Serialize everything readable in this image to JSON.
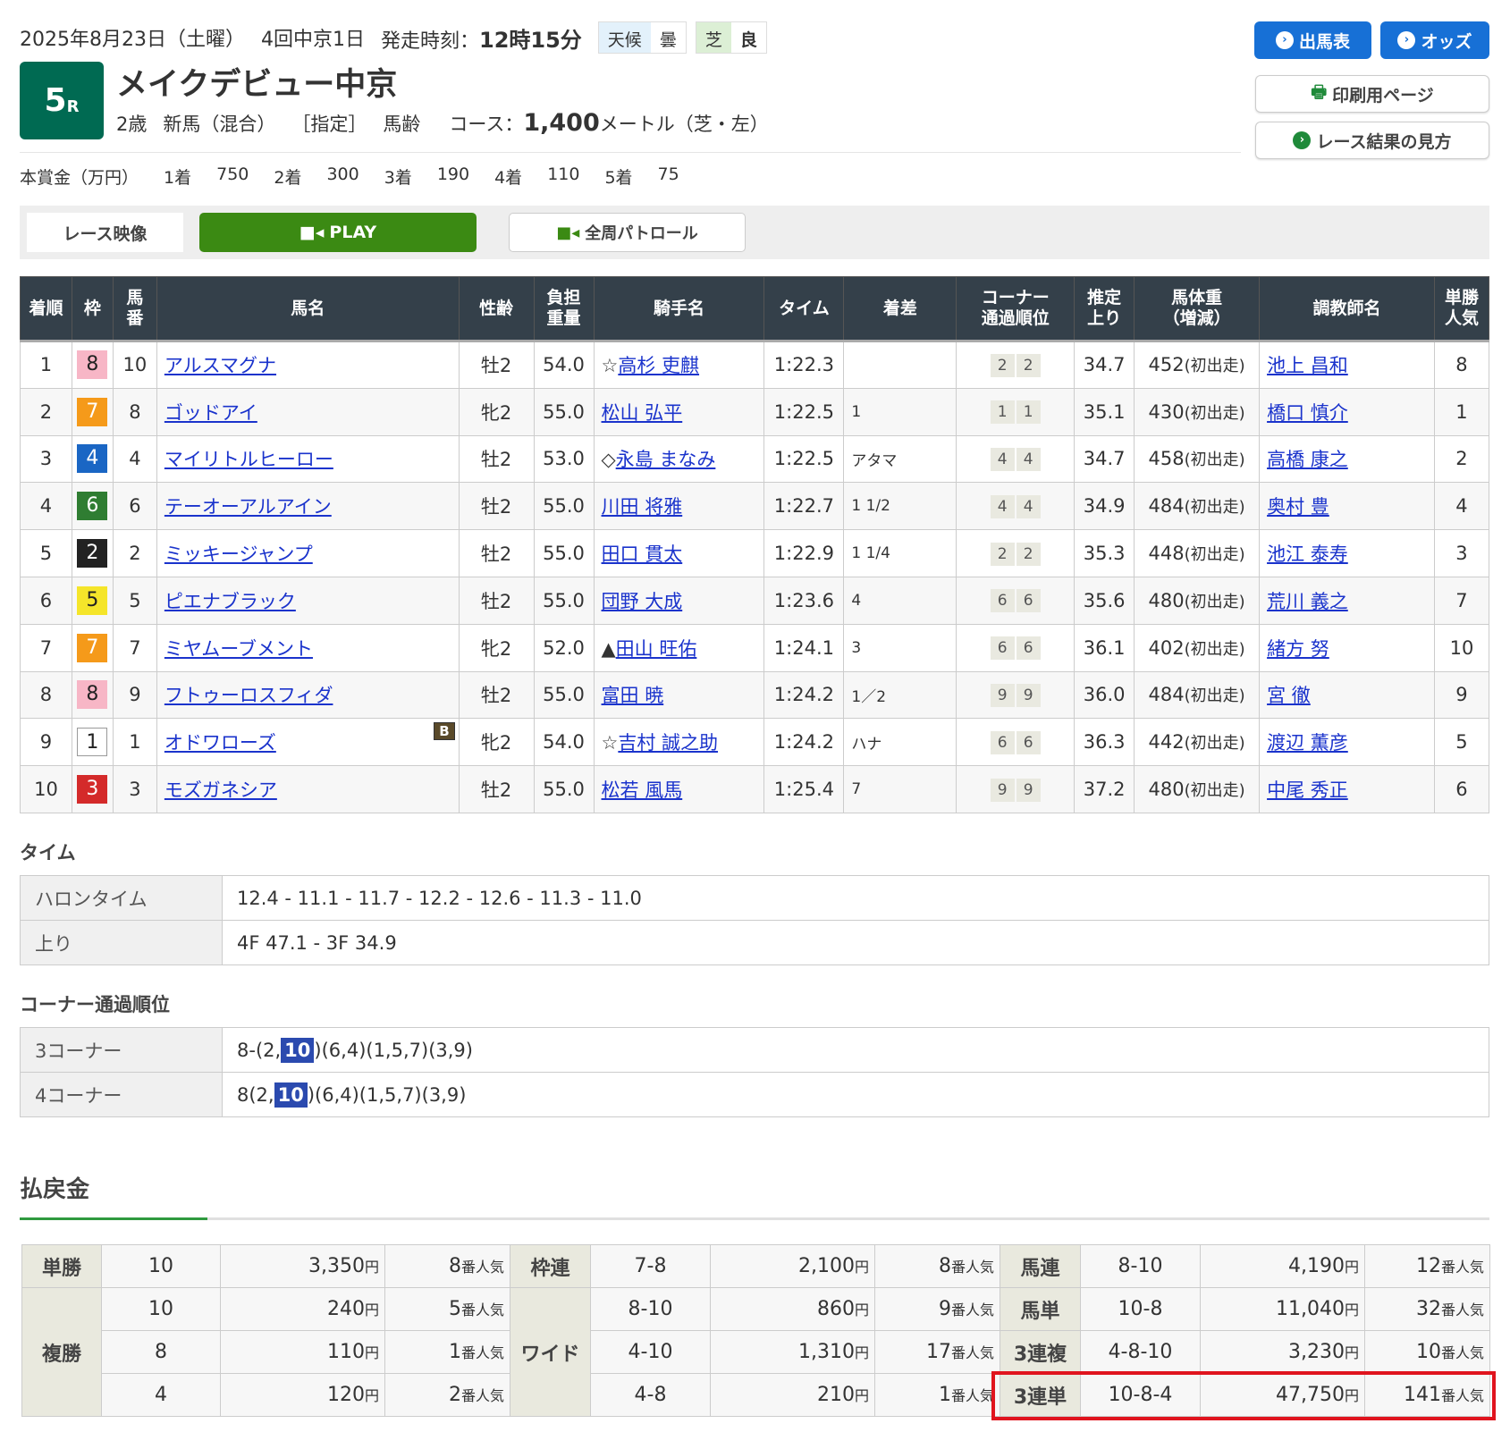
{
  "header": {
    "date": "2025年8月23日（土曜）",
    "meeting": "4回中京1日",
    "post_time_label": "発走時刻：",
    "post_time": "12時15分",
    "weather_label": "天候",
    "weather": "曇",
    "turf_label": "芝",
    "track": "良",
    "race_no": "5",
    "race_suffix": "R",
    "title": "メイクデビュー中京",
    "age": "2歳",
    "class": "新馬（混合）",
    "designation": "［指定］",
    "weight_rule": "馬齢",
    "course_label": "コース：",
    "distance": "1,400",
    "course_unit": "メートル（芝・左）"
  },
  "prize": {
    "label": "本賞金（万円）",
    "items": [
      [
        "1着",
        "750"
      ],
      [
        "2着",
        "300"
      ],
      [
        "3着",
        "190"
      ],
      [
        "4着",
        "110"
      ],
      [
        "5着",
        "75"
      ]
    ]
  },
  "buttons": {
    "entries": "出馬表",
    "odds": "オッズ",
    "print": "印刷用ページ",
    "guide": "レース結果の見方"
  },
  "video": {
    "label": "レース映像",
    "play": "PLAY",
    "patrol": "全周パトロール"
  },
  "colors": {
    "accent": "#1770d6",
    "race_badge": "#006a52",
    "play": "#3b8a13",
    "highlight": "#2b4aaf",
    "frames": {
      "1": "#ffffff",
      "2": "#222222",
      "3": "#d42a2a",
      "4": "#1a66c4",
      "5": "#f5e52a",
      "6": "#2f7d32",
      "7": "#f59a1a",
      "8": "#f7b6c6"
    }
  },
  "results": {
    "headers": [
      "着順",
      "枠",
      "馬番",
      "馬名",
      "性齢",
      "負担重量",
      "騎手名",
      "タイム",
      "着差",
      "コーナー通過順位",
      "推定上り",
      "馬体重（増減）",
      "調教師名",
      "単勝人気"
    ],
    "rows": [
      [
        "1",
        "8",
        "10",
        "アルスマグナ",
        "",
        "牡2",
        "54.0",
        "☆",
        "高杉 吏麒",
        "1:22.3",
        "",
        "2",
        "2",
        "34.7",
        "452",
        "(初出走)",
        "池上 昌和",
        "8"
      ],
      [
        "2",
        "7",
        "8",
        "ゴッドアイ",
        "",
        "牝2",
        "55.0",
        "",
        "松山 弘平",
        "1:22.5",
        "1",
        "1",
        "1",
        "35.1",
        "430",
        "(初出走)",
        "橋口 慎介",
        "1"
      ],
      [
        "3",
        "4",
        "4",
        "マイリトルヒーロー",
        "",
        "牡2",
        "53.0",
        "◇",
        "永島 まなみ",
        "1:22.5",
        "アタマ",
        "4",
        "4",
        "34.7",
        "458",
        "(初出走)",
        "高橋 康之",
        "2"
      ],
      [
        "4",
        "6",
        "6",
        "テーオーアルアイン",
        "",
        "牡2",
        "55.0",
        "",
        "川田 将雅",
        "1:22.7",
        "1 1/2",
        "4",
        "4",
        "34.9",
        "484",
        "(初出走)",
        "奥村 豊",
        "4"
      ],
      [
        "5",
        "2",
        "2",
        "ミッキージャンプ",
        "",
        "牡2",
        "55.0",
        "",
        "田口 貫太",
        "1:22.9",
        "1 1/4",
        "2",
        "2",
        "35.3",
        "448",
        "(初出走)",
        "池江 泰寿",
        "3"
      ],
      [
        "6",
        "5",
        "5",
        "ピエナブラック",
        "",
        "牡2",
        "55.0",
        "",
        "団野 大成",
        "1:23.6",
        "4",
        "6",
        "6",
        "35.6",
        "480",
        "(初出走)",
        "荒川 義之",
        "7"
      ],
      [
        "7",
        "7",
        "7",
        "ミヤムーブメント",
        "",
        "牝2",
        "52.0",
        "▲",
        "田山 旺佑",
        "1:24.1",
        "3",
        "6",
        "6",
        "36.1",
        "402",
        "(初出走)",
        "緒方 努",
        "10"
      ],
      [
        "8",
        "8",
        "9",
        "フトゥーロスフィダ",
        "",
        "牡2",
        "55.0",
        "",
        "富田 暁",
        "1:24.2",
        "1／2",
        "9",
        "9",
        "36.0",
        "484",
        "(初出走)",
        "宮 徹",
        "9"
      ],
      [
        "9",
        "1",
        "1",
        "オドワローズ",
        "B",
        "牝2",
        "54.0",
        "☆",
        "吉村 誠之助",
        "1:24.2",
        "ハナ",
        "6",
        "6",
        "36.3",
        "442",
        "(初出走)",
        "渡辺 薫彦",
        "5"
      ],
      [
        "10",
        "3",
        "3",
        "モズガネシア",
        "",
        "牡2",
        "55.0",
        "",
        "松若 風馬",
        "1:25.4",
        "7",
        "9",
        "9",
        "37.2",
        "480",
        "(初出走)",
        "中尾 秀正",
        "6"
      ]
    ]
  },
  "time": {
    "heading": "タイム",
    "rows": [
      [
        "ハロンタイム",
        "12.4 - 11.1 - 11.7 - 12.2 - 12.6 - 11.3 - 11.0"
      ],
      [
        "上り",
        "4F 47.1 - 3F 34.9"
      ]
    ]
  },
  "corner": {
    "heading": "コーナー通過順位",
    "rows": [
      {
        "label": "3コーナー",
        "pre": "8-(2,",
        "hl": "10",
        "post": ")(6,4)(1,5,7)(3,9)"
      },
      {
        "label": "4コーナー",
        "pre": "8(2,",
        "hl": "10",
        "post": ")(6,4)(1,5,7)(3,9)"
      }
    ]
  },
  "payout": {
    "heading": "払戻金",
    "yen": "円",
    "pop": "番人気",
    "win": {
      "label": "単勝",
      "rows": [
        [
          "10",
          "3,350",
          "8"
        ]
      ]
    },
    "place": {
      "label": "複勝",
      "rows": [
        [
          "10",
          "240",
          "5"
        ],
        [
          "8",
          "110",
          "1"
        ],
        [
          "4",
          "120",
          "2"
        ]
      ]
    },
    "bracket": {
      "label": "枠連",
      "rows": [
        [
          "7-8",
          "2,100",
          "8"
        ]
      ]
    },
    "wide": {
      "label": "ワイド",
      "rows": [
        [
          "8-10",
          "860",
          "9"
        ],
        [
          "4-10",
          "1,310",
          "17"
        ],
        [
          "4-8",
          "210",
          "1"
        ]
      ]
    },
    "quinella": {
      "label": "馬連",
      "rows": [
        [
          "8-10",
          "4,190",
          "12"
        ]
      ]
    },
    "exacta": {
      "label": "馬単",
      "rows": [
        [
          "10-8",
          "11,040",
          "32"
        ]
      ]
    },
    "trio": {
      "label": "3連複",
      "rows": [
        [
          "4-8-10",
          "3,230",
          "10"
        ]
      ]
    },
    "trifecta": {
      "label": "3連単",
      "rows": [
        [
          "10-8-4",
          "47,750",
          "141"
        ]
      ]
    }
  }
}
